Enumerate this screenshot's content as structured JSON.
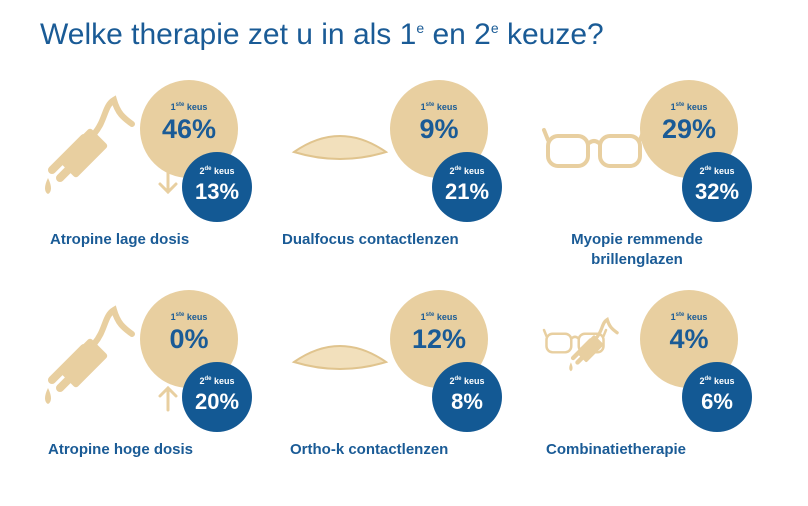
{
  "title": {
    "main": "Welke therapie zet u in als 1",
    "sup1": "e",
    "mid": " en 2",
    "sup2": "e",
    "end": " keuze?"
  },
  "keus": {
    "first_num": "1",
    "first_sup": "ste",
    "second_num": "2",
    "second_sup": "de",
    "word": " keus"
  },
  "chart_data": {
    "type": "bar",
    "title": "Welke therapie zet u in als 1e en 2e keuze?",
    "categories": [
      "Atropine lage dosis",
      "Dualfocus contactlenzen",
      "Myopie remmende brillenglazen",
      "Atropine hoge dosis",
      "Ortho-k contactlenzen",
      "Combinatietherapie"
    ],
    "series": [
      {
        "name": "1ste keus",
        "values": [
          46,
          9,
          29,
          0,
          12,
          4
        ],
        "color": "#e8cfa0"
      },
      {
        "name": "2de keus",
        "values": [
          13,
          21,
          32,
          20,
          8,
          6
        ],
        "color": "#135994"
      }
    ],
    "unit": "%"
  },
  "items": [
    {
      "label": "Atropine lage dosis",
      "first": "46%",
      "second": "13%",
      "icon": "dropper-down-icon"
    },
    {
      "label": "Dualfocus contactlenzen",
      "first": "9%",
      "second": "21%",
      "icon": "contact-lens-icon"
    },
    {
      "label": "Myopie remmende brillenglazen",
      "first": "29%",
      "second": "32%",
      "icon": "glasses-icon"
    },
    {
      "label": "Atropine hoge dosis",
      "first": "0%",
      "second": "20%",
      "icon": "dropper-up-icon"
    },
    {
      "label": "Ortho-k contactlenzen",
      "first": "12%",
      "second": "8%",
      "icon": "contact-lens-icon"
    },
    {
      "label": "Combinatietherapie",
      "first": "4%",
      "second": "6%",
      "icon": "glasses-dropper-icon"
    }
  ]
}
